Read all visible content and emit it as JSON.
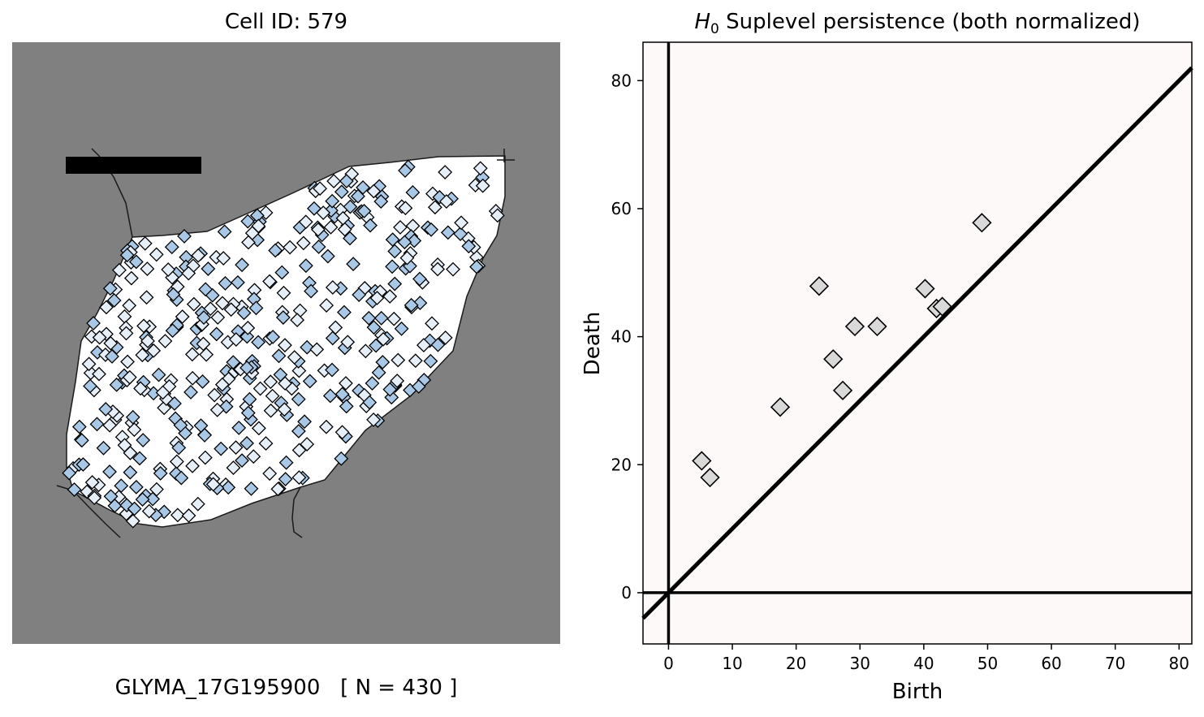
{
  "left_panel": {
    "title": "Cell ID: 579",
    "footer_gene": "GLYMA_17G195900",
    "footer_count": "[ N = 430 ]",
    "colors": {
      "background": "#808080",
      "cell": "#ffffff",
      "scale_bar": "#000000",
      "marker_light": "#e6eef8",
      "marker_blue": "#a9c8e6"
    }
  },
  "chart_data": {
    "type": "scatter",
    "title_prefix": "H",
    "title_subscript": "0",
    "title_rest": " Suplevel persistence (both normalized)",
    "xlabel": "Birth",
    "ylabel": "Death",
    "xlim": [
      -4,
      82
    ],
    "ylim": [
      -8,
      86
    ],
    "xticks": [
      0,
      10,
      20,
      30,
      40,
      50,
      60,
      70,
      80
    ],
    "yticks": [
      0,
      20,
      40,
      60,
      80
    ],
    "background": "#fdf9f8",
    "marker_color": "#d9d9d9",
    "grid": false,
    "diagonal": true,
    "points": [
      {
        "x": 5.2,
        "y": 20.6
      },
      {
        "x": 6.5,
        "y": 18.0
      },
      {
        "x": 17.5,
        "y": 29.0
      },
      {
        "x": 23.6,
        "y": 47.9
      },
      {
        "x": 25.8,
        "y": 36.5
      },
      {
        "x": 27.3,
        "y": 31.6
      },
      {
        "x": 29.2,
        "y": 41.6
      },
      {
        "x": 32.7,
        "y": 41.6
      },
      {
        "x": 40.2,
        "y": 47.5
      },
      {
        "x": 42.0,
        "y": 44.4
      },
      {
        "x": 42.9,
        "y": 44.7
      },
      {
        "x": 49.1,
        "y": 57.8
      }
    ]
  }
}
